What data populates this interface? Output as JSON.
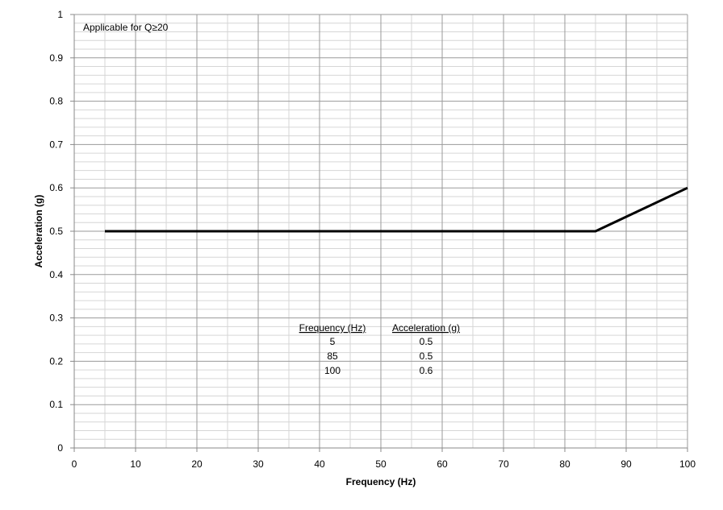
{
  "chart_data": {
    "type": "line",
    "xlabel": "Frequency (Hz)",
    "ylabel": "Acceleration (g)",
    "xlim": [
      0,
      100
    ],
    "ylim": [
      0,
      1
    ],
    "x_ticks": [
      0,
      10,
      20,
      30,
      40,
      50,
      60,
      70,
      80,
      90,
      100
    ],
    "y_ticks": [
      0,
      0.1,
      0.2,
      0.3,
      0.4,
      0.5,
      0.6,
      0.7,
      0.8,
      0.9,
      1
    ],
    "y_tick_labels": [
      "0",
      "0.1",
      "0.2",
      "0.3",
      "0.4",
      "0.5",
      "0.6",
      "0.7",
      "0.8",
      "0.9",
      "1"
    ],
    "grid": true,
    "series": [
      {
        "x": [
          5,
          85,
          100
        ],
        "y": [
          0.5,
          0.5,
          0.6
        ],
        "color": "#000000"
      }
    ],
    "annotations": [
      {
        "text": "Applicable for Q≥20"
      }
    ],
    "table": {
      "headers": [
        "Frequency (Hz)",
        "Acceleration (g)"
      ],
      "rows": [
        [
          "5",
          "0.5"
        ],
        [
          "85",
          "0.5"
        ],
        [
          "100",
          "0.6"
        ]
      ]
    }
  }
}
